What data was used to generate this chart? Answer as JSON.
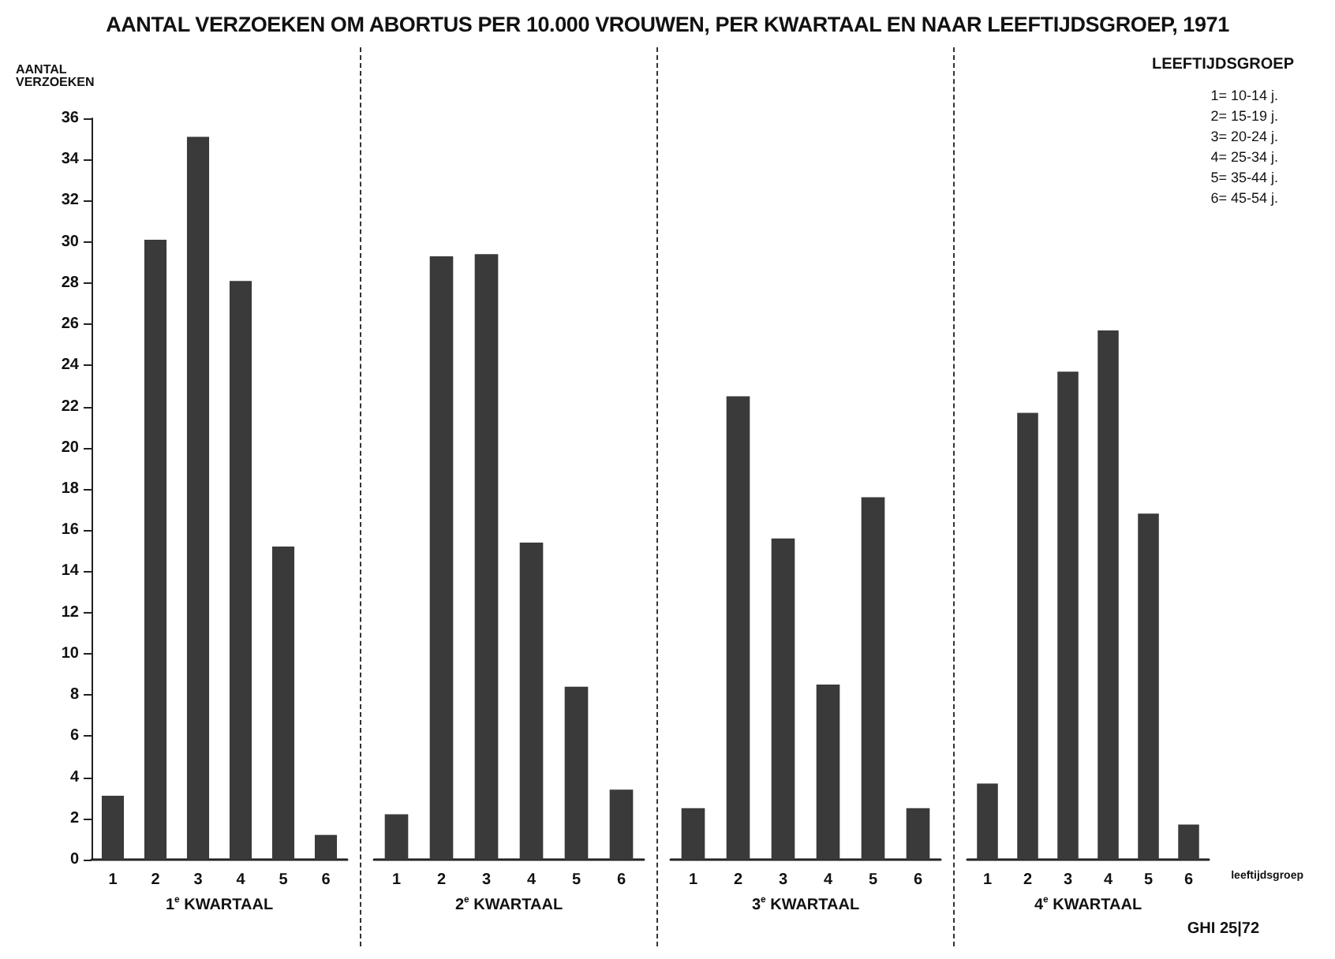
{
  "chart_data": [
    {
      "type": "bar",
      "title": "AANTAL VERZOEKEN OM ABORTUS PER 10.000 VROUWEN, PER KWARTAAL EN NAAR LEEFTIJDSGROEP, 1971",
      "ylabel": "AANTAL\nVERZOEKEN",
      "xlabel": "1$^{e}$ KWARTAAL",
      "categories": [
        "1",
        "2",
        "3",
        "4",
        "5",
        "6"
      ],
      "values": [
        3.1,
        30.1,
        35.1,
        28.1,
        15.2,
        1.2
      ],
      "color": "#3a3a3a",
      "ylim": [
        0,
        36
      ],
      "yticks": [
        0,
        2,
        4,
        6,
        8,
        10,
        12,
        14,
        16,
        18,
        20,
        22,
        24,
        26,
        28,
        30,
        32,
        34,
        36
      ],
      "grid": false
    },
    {
      "type": "bar",
      "xlabel": "2$^{e}$ KWARTAAL",
      "categories": [
        "1",
        "2",
        "3",
        "4",
        "5",
        "6"
      ],
      "values": [
        2.2,
        29.3,
        29.4,
        15.4,
        8.4,
        3.4
      ],
      "color": "#3a3a3a",
      "ylim": [
        0,
        36
      ],
      "yticks": [
        0,
        2,
        4,
        6,
        8,
        10,
        12,
        14,
        16,
        18,
        20,
        22,
        24,
        26,
        28,
        30,
        32,
        34,
        36
      ],
      "tick_labels": "x",
      "grid": false
    },
    {
      "type": "bar",
      "xlabel": "3$^{e}$ KWARTAAL",
      "categories": [
        "1",
        "2",
        "3",
        "4",
        "5",
        "6"
      ],
      "values": [
        2.5,
        22.5,
        15.6,
        8.5,
        17.6,
        2.5
      ],
      "color": "#3a3a3a",
      "ylim": [
        0,
        36
      ],
      "yticks": [
        0,
        2,
        4,
        6,
        8,
        10,
        12,
        14,
        16,
        18,
        20,
        22,
        24,
        26,
        28,
        30,
        32,
        34,
        36
      ],
      "tick_labels": "x",
      "grid": false
    },
    {
      "type": "bar",
      "xlabel": "4$^{e}$ KWARTAAL",
      "legend_title": "LEEFTIJDSGROEP",
      "categories": [
        "1",
        "2",
        "3",
        "4",
        "5",
        "6"
      ],
      "values": [
        3.7,
        21.7,
        23.7,
        25.7,
        16.8,
        1.7
      ],
      "color": "#3a3a3a",
      "ylim": [
        0,
        36
      ],
      "yticks": [
        0,
        2,
        4,
        6,
        8,
        10,
        12,
        14,
        16,
        18,
        20,
        22,
        24,
        26,
        28,
        30,
        32,
        34,
        36
      ],
      "tick_labels": "x",
      "grid": false,
      "annotations": [
        "1= 10-14 j.",
        "2= 15-19 j.",
        "3= 20-24 j.",
        "4= 25-34 j.",
        "5= 35-44 j.",
        "6= 45-54 j.",
        "leeftijdsgroep",
        "GHI 25|72"
      ]
    }
  ]
}
